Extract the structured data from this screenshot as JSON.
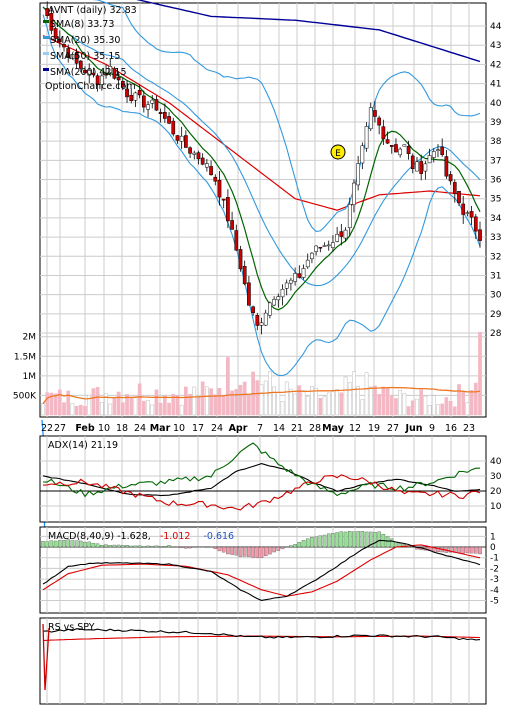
{
  "chart_data": {
    "type": "line",
    "subtype": "stock-technical",
    "grid": true,
    "main": {
      "title": "AVNT (daily) 32.83",
      "watermark": "OptionChance.com",
      "legend_placement": "top-left",
      "y_ticks": [
        28,
        29,
        30,
        31,
        32,
        33,
        34,
        35,
        36,
        37,
        38,
        39,
        40,
        41,
        42,
        43,
        44
      ],
      "ylim": [
        27.5,
        44.6
      ],
      "series": [
        {
          "name": "SMA(8) 33.73",
          "color": "#006400"
        },
        {
          "name": "SMA(20) 35.30",
          "color": "#3399dd"
        },
        {
          "name": "SMA(50) 35.15",
          "color": "#99ccee"
        },
        {
          "name": "SMA(200) 42.15",
          "color": "#000099"
        }
      ],
      "sma50_color_main": "#dd0000",
      "candle_up_color": "#ffffff",
      "candle_down_color": "#cc0000",
      "earnings_marker": "E"
    },
    "x_axis": {
      "labels": [
        "22",
        "27",
        "Feb",
        "10",
        "18",
        "24",
        "Mar",
        "10",
        "17",
        "24",
        "Apr",
        "7",
        "14",
        "21",
        "28",
        "May",
        "12",
        "19",
        "27",
        "Jun",
        "9",
        "16",
        "23"
      ]
    },
    "volume": {
      "y_ticks": [
        "2M",
        "1.5M",
        "1M",
        "500K"
      ],
      "ylim": [
        0,
        2300000
      ],
      "avg_color": "#ee7722"
    },
    "adx": {
      "label": "ADX(14) 21.19",
      "y_ticks": [
        40,
        30,
        20,
        10
      ],
      "ylim": [
        2,
        54
      ],
      "reference": 20
    },
    "macd": {
      "label_prefix": "MACD(8,40,9) -1.628,",
      "label_signal": "-1.012",
      "label_hist": "-0.616",
      "signal_color": "#dd0000",
      "hist_color": "#2255bb",
      "y_ticks": [
        1,
        0,
        -1,
        -2,
        -3,
        -4,
        -5
      ],
      "ylim": [
        -5.8,
        1.5
      ]
    },
    "rs": {
      "label": "RS vs SPY"
    }
  }
}
